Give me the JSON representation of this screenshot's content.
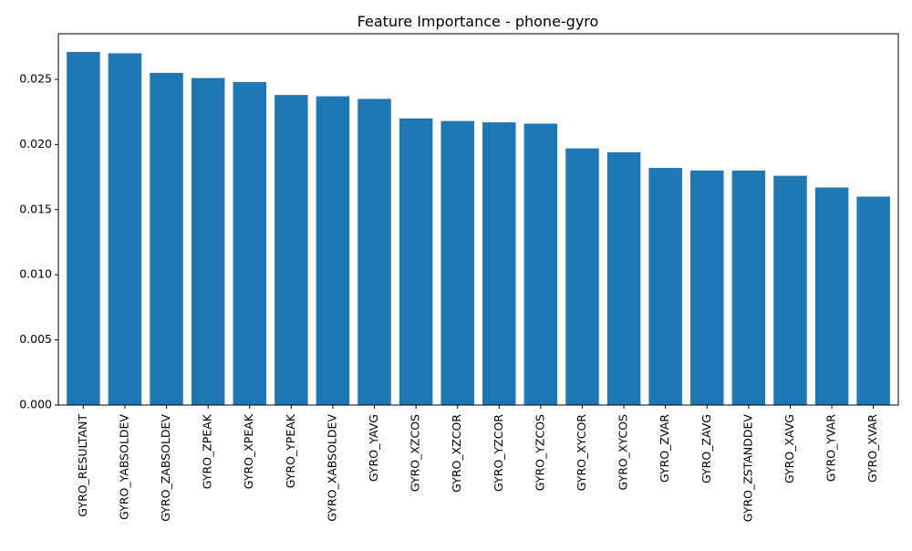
{
  "chart_data": {
    "type": "bar",
    "title": "Feature Importance - phone-gyro",
    "xlabel": "",
    "ylabel": "",
    "categories": [
      "GYRO_RESULTANT",
      "GYRO_YABSOLDEV",
      "GYRO_ZABSOLDEV",
      "GYRO_ZPEAK",
      "GYRO_XPEAK",
      "GYRO_YPEAK",
      "GYRO_XABSOLDEV",
      "GYRO_YAVG",
      "GYRO_XZCOS",
      "GYRO_XZCOR",
      "GYRO_YZCOR",
      "GYRO_YZCOS",
      "GYRO_XYCOR",
      "GYRO_XYCOS",
      "GYRO_ZVAR",
      "GYRO_ZAVG",
      "GYRO_ZSTANDDEV",
      "GYRO_XAVG",
      "GYRO_YVAR",
      "GYRO_XVAR"
    ],
    "values": [
      0.0271,
      0.027,
      0.0255,
      0.0251,
      0.0248,
      0.0238,
      0.0237,
      0.0235,
      0.022,
      0.0218,
      0.0217,
      0.0216,
      0.0197,
      0.0194,
      0.0182,
      0.018,
      0.018,
      0.0176,
      0.0167,
      0.016
    ],
    "ylim": [
      0,
      0.0285
    ],
    "yticks": [
      0.0,
      0.005,
      0.01,
      0.015,
      0.02,
      0.025
    ],
    "ytick_labels": [
      "0.000",
      "0.005",
      "0.010",
      "0.015",
      "0.020",
      "0.025"
    ],
    "bar_color": "#1f77b4",
    "grid": false,
    "legend": "none"
  }
}
